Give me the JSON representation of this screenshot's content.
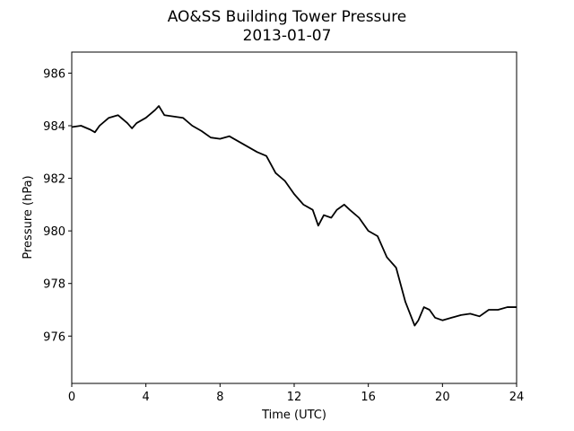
{
  "chart_data": {
    "type": "line",
    "title": "AO&SS Building Tower Pressure",
    "subtitle": "2013-01-07",
    "x_label": "Time (UTC)",
    "y_label": "Pressure (hPa)",
    "x": [
      0,
      0.5,
      1.0,
      1.25,
      1.5,
      2.0,
      2.5,
      3.0,
      3.25,
      3.5,
      4.0,
      4.5,
      4.7,
      5.0,
      5.5,
      6.0,
      6.5,
      7.0,
      7.5,
      8.0,
      8.5,
      9.0,
      9.5,
      10.0,
      10.5,
      11.0,
      11.5,
      12.0,
      12.5,
      13.0,
      13.3,
      13.6,
      14.0,
      14.3,
      14.7,
      15.0,
      15.5,
      16.0,
      16.5,
      17.0,
      17.5,
      18.0,
      18.5,
      18.7,
      19.0,
      19.3,
      19.6,
      20.0,
      20.5,
      21.0,
      21.5,
      22.0,
      22.5,
      23.0,
      23.5,
      24.0
    ],
    "series": [
      {
        "name": "Pressure",
        "color": "#000000",
        "values": [
          983.95,
          984.0,
          983.85,
          983.75,
          984.0,
          984.3,
          984.4,
          984.1,
          983.9,
          984.1,
          984.3,
          984.6,
          984.75,
          984.4,
          984.35,
          984.3,
          984.0,
          983.8,
          983.55,
          983.5,
          983.6,
          983.4,
          983.2,
          983.0,
          982.85,
          982.2,
          981.9,
          981.4,
          981.0,
          980.8,
          980.2,
          980.6,
          980.5,
          980.8,
          981.0,
          980.8,
          980.5,
          980.0,
          979.8,
          979.0,
          978.6,
          977.3,
          976.4,
          976.6,
          977.1,
          977.0,
          976.7,
          976.6,
          976.7,
          976.8,
          976.85,
          976.75,
          977.0,
          977.0,
          977.1,
          977.1
        ]
      }
    ],
    "xlim": [
      0,
      24
    ],
    "xticks": [
      0,
      4,
      8,
      12,
      16,
      20,
      24
    ],
    "ylim": [
      974.2,
      986.8
    ],
    "yticks": [
      976,
      978,
      980,
      982,
      984,
      986
    ],
    "grid": false
  }
}
